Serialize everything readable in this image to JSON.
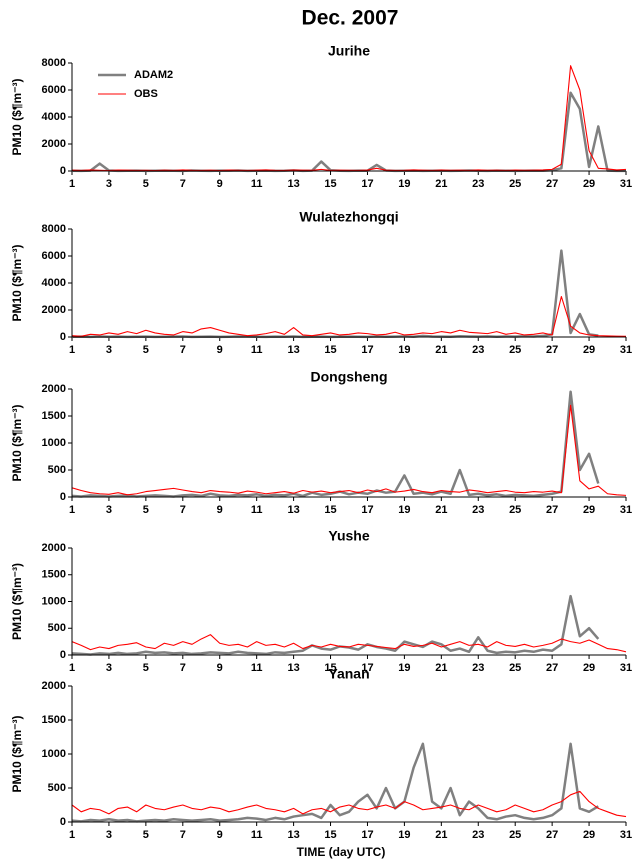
{
  "figure": {
    "title": "Dec. 2007"
  },
  "chart_data": [
    {
      "type": "line",
      "title": "Jurihe",
      "ylabel": "PM10 ($¶m⁻³)",
      "legend": "upper left",
      "x": [
        1,
        1.5,
        2,
        2.5,
        3,
        3.5,
        4,
        4.5,
        5,
        5.5,
        6,
        6.5,
        7,
        7.5,
        8,
        8.5,
        9,
        9.5,
        10,
        10.5,
        11,
        11.5,
        12,
        12.5,
        13,
        13.5,
        14,
        14.5,
        15,
        15.5,
        16,
        16.5,
        17,
        17.5,
        18,
        18.5,
        19,
        19.5,
        20,
        20.5,
        21,
        21.5,
        22,
        22.5,
        23,
        23.5,
        24,
        24.5,
        25,
        25.5,
        26,
        26.5,
        27,
        27.5,
        28,
        28.5,
        29,
        29.5,
        30,
        30.5,
        31
      ],
      "xlim": [
        1,
        31
      ],
      "xticks": [
        1,
        3,
        5,
        7,
        9,
        11,
        13,
        15,
        17,
        19,
        21,
        23,
        25,
        27,
        29,
        31
      ],
      "ylim": [
        0,
        8000
      ],
      "yticks": [
        0,
        2000,
        4000,
        6000,
        8000
      ],
      "series": [
        {
          "name": "ADAM2",
          "color": "#808080",
          "values": [
            20,
            10,
            30,
            550,
            40,
            10,
            20,
            30,
            10,
            20,
            30,
            20,
            10,
            40,
            20,
            10,
            30,
            20,
            40,
            10,
            20,
            30,
            10,
            20,
            50,
            10,
            30,
            700,
            60,
            20,
            10,
            30,
            20,
            450,
            40,
            10,
            20,
            30,
            10,
            20,
            30,
            10,
            20,
            40,
            20,
            10,
            30,
            20,
            10,
            20,
            30,
            20,
            60,
            200,
            5800,
            4600,
            300,
            3300,
            30,
            10,
            10
          ]
        },
        {
          "name": "OBS",
          "color": "#ff0000",
          "values": [
            60,
            40,
            80,
            50,
            30,
            70,
            60,
            40,
            50,
            30,
            60,
            40,
            80,
            50,
            40,
            60,
            30,
            70,
            50,
            40,
            60,
            80,
            50,
            40,
            70,
            60,
            50,
            120,
            40,
            60,
            50,
            40,
            70,
            200,
            60,
            40,
            50,
            80,
            60,
            40,
            70,
            50,
            60,
            40,
            80,
            50,
            60,
            40,
            70,
            50,
            60,
            80,
            120,
            500,
            7800,
            6000,
            1500,
            200,
            150,
            80,
            120
          ]
        }
      ]
    },
    {
      "type": "line",
      "title": "Wulatezhongqi",
      "ylabel": "PM10 ($¶m⁻³)",
      "x": [
        1,
        1.5,
        2,
        2.5,
        3,
        3.5,
        4,
        4.5,
        5,
        5.5,
        6,
        6.5,
        7,
        7.5,
        8,
        8.5,
        9,
        9.5,
        10,
        10.5,
        11,
        11.5,
        12,
        12.5,
        13,
        13.5,
        14,
        14.5,
        15,
        15.5,
        16,
        16.5,
        17,
        17.5,
        18,
        18.5,
        19,
        19.5,
        20,
        20.5,
        21,
        21.5,
        22,
        22.5,
        23,
        23.5,
        24,
        24.5,
        25,
        25.5,
        26,
        26.5,
        27,
        27.5,
        28,
        28.5,
        29,
        29.5,
        30,
        30.5,
        31
      ],
      "xlim": [
        1,
        31
      ],
      "xticks": [
        1,
        3,
        5,
        7,
        9,
        11,
        13,
        15,
        17,
        19,
        21,
        23,
        25,
        27,
        29,
        31
      ],
      "ylim": [
        0,
        8000
      ],
      "yticks": [
        0,
        2000,
        4000,
        6000,
        8000
      ],
      "series": [
        {
          "name": "ADAM2",
          "color": "#808080",
          "values": [
            20,
            30,
            10,
            40,
            20,
            30,
            10,
            20,
            30,
            10,
            20,
            30,
            40,
            10,
            20,
            30,
            10,
            20,
            40,
            30,
            20,
            10,
            30,
            20,
            40,
            10,
            20,
            30,
            10,
            20,
            30,
            20,
            10,
            40,
            20,
            30,
            50,
            20,
            80,
            40,
            30,
            20,
            60,
            40,
            30,
            50,
            20,
            40,
            30,
            60,
            40,
            80,
            200,
            6400,
            300,
            1700,
            200,
            100,
            null,
            null,
            null
          ]
        },
        {
          "name": "OBS",
          "color": "#ff0000",
          "values": [
            100,
            50,
            200,
            150,
            300,
            200,
            400,
            250,
            500,
            300,
            200,
            150,
            400,
            300,
            600,
            700,
            500,
            300,
            200,
            100,
            150,
            250,
            400,
            200,
            700,
            150,
            100,
            200,
            300,
            150,
            200,
            300,
            250,
            150,
            200,
            350,
            150,
            200,
            300,
            250,
            400,
            300,
            500,
            350,
            300,
            250,
            400,
            200,
            300,
            150,
            200,
            300,
            150,
            3000,
            800,
            300,
            150,
            100,
            80,
            60,
            50
          ]
        }
      ]
    },
    {
      "type": "line",
      "title": "Dongsheng",
      "ylabel": "PM10 ($¶m⁻³)",
      "x": [
        1,
        1.5,
        2,
        2.5,
        3,
        3.5,
        4,
        4.5,
        5,
        5.5,
        6,
        6.5,
        7,
        7.5,
        8,
        8.5,
        9,
        9.5,
        10,
        10.5,
        11,
        11.5,
        12,
        12.5,
        13,
        13.5,
        14,
        14.5,
        15,
        15.5,
        16,
        16.5,
        17,
        17.5,
        18,
        18.5,
        19,
        19.5,
        20,
        20.5,
        21,
        21.5,
        22,
        22.5,
        23,
        23.5,
        24,
        24.5,
        25,
        25.5,
        26,
        26.5,
        27,
        27.5,
        28,
        28.5,
        29,
        29.5,
        30,
        30.5,
        31
      ],
      "xlim": [
        1,
        31
      ],
      "xticks": [
        1,
        3,
        5,
        7,
        9,
        11,
        13,
        15,
        17,
        19,
        21,
        23,
        25,
        27,
        29,
        31
      ],
      "ylim": [
        0,
        2000
      ],
      "yticks": [
        0,
        500,
        1000,
        1500,
        2000
      ],
      "series": [
        {
          "name": "ADAM2",
          "color": "#808080",
          "values": [
            20,
            10,
            30,
            20,
            10,
            20,
            30,
            10,
            20,
            30,
            20,
            10,
            30,
            40,
            20,
            60,
            30,
            20,
            40,
            30,
            50,
            20,
            40,
            30,
            60,
            20,
            80,
            40,
            60,
            100,
            50,
            80,
            60,
            120,
            80,
            100,
            400,
            60,
            80,
            50,
            100,
            60,
            500,
            40,
            60,
            30,
            50,
            20,
            40,
            30,
            20,
            40,
            60,
            100,
            1950,
            500,
            800,
            250,
            null,
            null,
            null
          ]
        },
        {
          "name": "OBS",
          "color": "#ff0000",
          "values": [
            170,
            120,
            80,
            60,
            50,
            80,
            40,
            60,
            100,
            120,
            140,
            160,
            130,
            100,
            80,
            120,
            100,
            90,
            70,
            110,
            90,
            60,
            80,
            100,
            70,
            120,
            90,
            110,
            80,
            100,
            120,
            80,
            130,
            100,
            150,
            90,
            110,
            140,
            100,
            80,
            120,
            100,
            90,
            130,
            110,
            80,
            100,
            120,
            90,
            80,
            100,
            90,
            110,
            80,
            1700,
            300,
            150,
            200,
            60,
            40,
            30
          ]
        }
      ]
    },
    {
      "type": "line",
      "title": "Yushe",
      "ylabel": "PM10 ($¶m⁻³)",
      "x": [
        1,
        1.5,
        2,
        2.5,
        3,
        3.5,
        4,
        4.5,
        5,
        5.5,
        6,
        6.5,
        7,
        7.5,
        8,
        8.5,
        9,
        9.5,
        10,
        10.5,
        11,
        11.5,
        12,
        12.5,
        13,
        13.5,
        14,
        14.5,
        15,
        15.5,
        16,
        16.5,
        17,
        17.5,
        18,
        18.5,
        19,
        19.5,
        20,
        20.5,
        21,
        21.5,
        22,
        22.5,
        23,
        23.5,
        24,
        24.5,
        25,
        25.5,
        26,
        26.5,
        27,
        27.5,
        28,
        28.5,
        29,
        29.5,
        30,
        30.5,
        31
      ],
      "xlim": [
        1,
        31
      ],
      "xticks": [
        1,
        3,
        5,
        7,
        9,
        11,
        13,
        15,
        17,
        19,
        21,
        23,
        25,
        27,
        29,
        31
      ],
      "ylim": [
        0,
        2000
      ],
      "yticks": [
        0,
        500,
        1000,
        1500,
        2000
      ],
      "series": [
        {
          "name": "ADAM2",
          "color": "#808080",
          "values": [
            30,
            20,
            10,
            30,
            20,
            40,
            20,
            30,
            60,
            40,
            50,
            30,
            40,
            20,
            30,
            50,
            40,
            30,
            60,
            40,
            30,
            20,
            50,
            40,
            60,
            80,
            180,
            120,
            100,
            160,
            140,
            100,
            200,
            150,
            120,
            80,
            250,
            200,
            150,
            250,
            200,
            80,
            120,
            60,
            330,
            80,
            40,
            60,
            50,
            80,
            60,
            100,
            80,
            200,
            1100,
            350,
            500,
            300,
            null,
            null,
            null
          ]
        },
        {
          "name": "OBS",
          "color": "#ff0000",
          "values": [
            250,
            180,
            100,
            150,
            120,
            180,
            200,
            230,
            150,
            120,
            220,
            180,
            250,
            200,
            300,
            380,
            220,
            180,
            200,
            150,
            250,
            180,
            200,
            150,
            220,
            120,
            180,
            150,
            200,
            160,
            150,
            200,
            180,
            160,
            140,
            120,
            200,
            160,
            180,
            220,
            150,
            200,
            250,
            180,
            200,
            150,
            250,
            180,
            160,
            200,
            150,
            180,
            220,
            300,
            250,
            220,
            280,
            200,
            120,
            100,
            60
          ]
        }
      ]
    },
    {
      "type": "line",
      "title": "Yanan",
      "ylabel": "PM10 ($¶m⁻³)",
      "xlabel": "TIME (day UTC)",
      "x": [
        1,
        1.5,
        2,
        2.5,
        3,
        3.5,
        4,
        4.5,
        5,
        5.5,
        6,
        6.5,
        7,
        7.5,
        8,
        8.5,
        9,
        9.5,
        10,
        10.5,
        11,
        11.5,
        12,
        12.5,
        13,
        13.5,
        14,
        14.5,
        15,
        15.5,
        16,
        16.5,
        17,
        17.5,
        18,
        18.5,
        19,
        19.5,
        20,
        20.5,
        21,
        21.5,
        22,
        22.5,
        23,
        23.5,
        24,
        24.5,
        25,
        25.5,
        26,
        26.5,
        27,
        27.5,
        28,
        28.5,
        29,
        29.5,
        30,
        30.5,
        31
      ],
      "xlim": [
        1,
        31
      ],
      "xticks": [
        1,
        3,
        5,
        7,
        9,
        11,
        13,
        15,
        17,
        19,
        21,
        23,
        25,
        27,
        29,
        31
      ],
      "ylim": [
        0,
        2000
      ],
      "yticks": [
        0,
        500,
        1000,
        1500,
        2000
      ],
      "series": [
        {
          "name": "ADAM2",
          "color": "#808080",
          "values": [
            20,
            10,
            30,
            20,
            40,
            20,
            30,
            10,
            20,
            30,
            20,
            40,
            30,
            20,
            30,
            40,
            20,
            30,
            40,
            60,
            50,
            30,
            60,
            40,
            80,
            100,
            120,
            60,
            250,
            100,
            150,
            300,
            400,
            200,
            500,
            200,
            300,
            800,
            1150,
            300,
            200,
            500,
            100,
            300,
            200,
            60,
            40,
            80,
            100,
            60,
            40,
            60,
            100,
            200,
            1150,
            200,
            150,
            230,
            null,
            null,
            null
          ]
        },
        {
          "name": "OBS",
          "color": "#ff0000",
          "values": [
            250,
            150,
            200,
            180,
            120,
            200,
            220,
            150,
            250,
            200,
            180,
            220,
            250,
            200,
            180,
            220,
            200,
            150,
            180,
            220,
            250,
            200,
            180,
            150,
            200,
            120,
            180,
            200,
            150,
            220,
            250,
            200,
            180,
            220,
            250,
            200,
            300,
            250,
            180,
            200,
            220,
            250,
            200,
            180,
            250,
            200,
            150,
            180,
            250,
            200,
            150,
            180,
            250,
            300,
            400,
            450,
            300,
            200,
            150,
            100,
            80
          ]
        }
      ]
    }
  ]
}
